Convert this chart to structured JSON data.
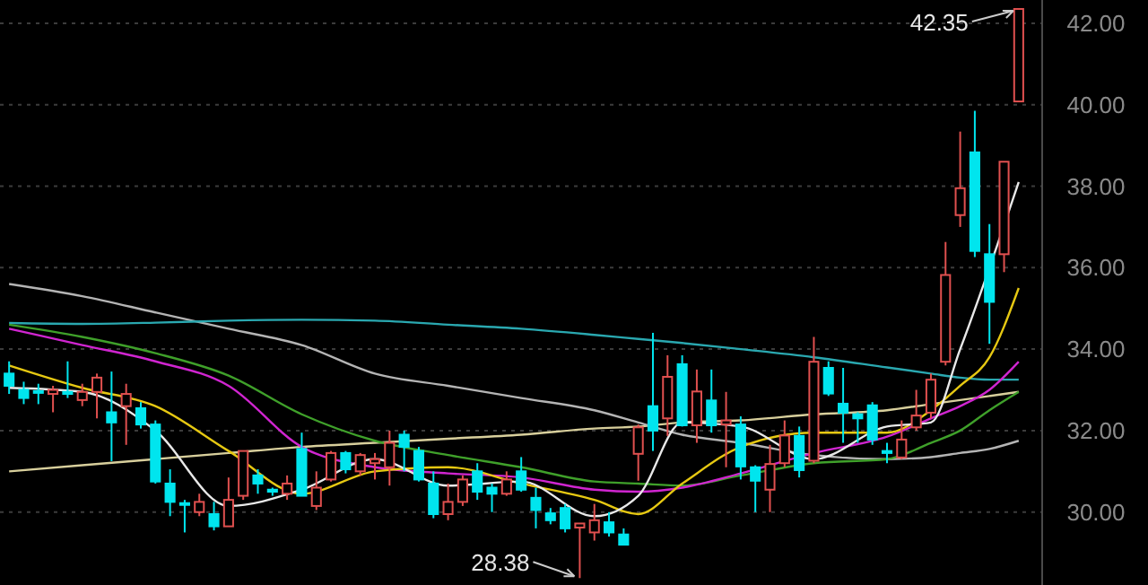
{
  "chart_data": {
    "type": "candlestick",
    "categories": [
      null,
      null,
      null,
      null,
      null,
      null,
      null,
      null,
      null,
      null,
      null,
      null,
      null,
      null,
      null,
      null,
      null,
      null,
      null,
      null,
      null,
      null,
      null,
      null,
      null,
      null,
      null,
      null,
      null,
      null,
      null,
      null,
      null,
      null,
      null,
      null,
      null,
      null,
      null,
      null,
      null,
      null,
      null,
      null,
      null,
      null,
      null,
      null,
      null,
      null,
      null,
      null,
      null,
      null,
      null,
      null,
      null,
      null,
      null,
      null,
      null,
      null,
      null,
      null,
      null,
      null,
      null,
      null,
      null,
      null
    ],
    "ohlc": [
      [
        33.4,
        33.7,
        32.9,
        33.1
      ],
      [
        33.0,
        33.2,
        32.65,
        32.8
      ],
      [
        32.97,
        33.15,
        32.65,
        32.93
      ],
      [
        32.9,
        33.1,
        32.45,
        33.0
      ],
      [
        32.95,
        33.7,
        32.8,
        32.9
      ],
      [
        32.75,
        33.15,
        32.6,
        32.95
      ],
      [
        32.95,
        33.4,
        32.3,
        33.3
      ],
      [
        32.45,
        33.45,
        31.25,
        32.2
      ],
      [
        32.6,
        33.15,
        31.65,
        32.9
      ],
      [
        32.55,
        32.7,
        32.05,
        32.15
      ],
      [
        32.15,
        32.25,
        30.7,
        30.75
      ],
      [
        30.7,
        31.05,
        29.9,
        30.25
      ],
      [
        30.22,
        30.3,
        29.5,
        30.18
      ],
      [
        30.0,
        30.45,
        29.9,
        30.25
      ],
      [
        29.95,
        30.25,
        29.55,
        29.65
      ],
      [
        29.65,
        30.85,
        29.65,
        30.3
      ],
      [
        30.4,
        31.5,
        30.3,
        31.5
      ],
      [
        30.9,
        31.05,
        30.45,
        30.7
      ],
      [
        30.55,
        30.6,
        30.4,
        30.5
      ],
      [
        30.45,
        30.9,
        30.3,
        30.7
      ],
      [
        31.55,
        31.95,
        30.4,
        30.4
      ],
      [
        30.15,
        31.0,
        30.05,
        30.6
      ],
      [
        30.8,
        31.5,
        30.75,
        31.45
      ],
      [
        31.45,
        31.5,
        30.95,
        31.05
      ],
      [
        31.0,
        31.45,
        30.9,
        31.4
      ],
      [
        31.2,
        31.45,
        30.8,
        31.3
      ],
      [
        31.1,
        32.0,
        30.65,
        31.7
      ],
      [
        31.9,
        32.0,
        31.0,
        31.6
      ],
      [
        31.5,
        31.6,
        30.75,
        30.8
      ],
      [
        30.7,
        31.0,
        29.85,
        29.95
      ],
      [
        29.95,
        30.7,
        29.8,
        30.25
      ],
      [
        30.25,
        30.9,
        30.15,
        30.8
      ],
      [
        31.0,
        31.2,
        30.3,
        30.5
      ],
      [
        30.6,
        30.7,
        30.0,
        30.45
      ],
      [
        30.45,
        31.0,
        30.4,
        30.8
      ],
      [
        31.0,
        31.35,
        30.5,
        30.55
      ],
      [
        30.35,
        30.6,
        29.6,
        30.05
      ],
      [
        29.97,
        30.1,
        29.7,
        29.8
      ],
      [
        30.1,
        30.2,
        29.5,
        29.6
      ],
      [
        29.62,
        29.72,
        28.38,
        29.72
      ],
      [
        29.5,
        30.2,
        29.3,
        29.8
      ],
      [
        29.75,
        30.0,
        29.4,
        29.5
      ],
      [
        29.45,
        29.6,
        29.2,
        29.2
      ],
      [
        31.43,
        32.15,
        30.77,
        32.08
      ],
      [
        32.6,
        34.4,
        31.5,
        32.0
      ],
      [
        32.3,
        33.85,
        31.87,
        33.32
      ],
      [
        33.63,
        33.85,
        32.1,
        32.13
      ],
      [
        32.13,
        33.5,
        31.7,
        32.96
      ],
      [
        32.74,
        33.5,
        31.95,
        32.13
      ],
      [
        32.15,
        32.95,
        31.1,
        32.25
      ],
      [
        32.15,
        32.35,
        30.8,
        31.12
      ],
      [
        31.1,
        31.15,
        30.0,
        30.77
      ],
      [
        30.55,
        31.65,
        30.0,
        31.18
      ],
      [
        31.2,
        32.25,
        31.1,
        31.88
      ],
      [
        31.87,
        32.1,
        30.85,
        31.03
      ],
      [
        31.26,
        34.3,
        31.2,
        33.69
      ],
      [
        33.54,
        33.7,
        32.85,
        32.91
      ],
      [
        32.66,
        33.54,
        31.7,
        32.44
      ],
      [
        32.4,
        32.45,
        31.7,
        32.3
      ],
      [
        32.62,
        32.7,
        31.65,
        31.78
      ],
      [
        31.5,
        31.7,
        31.2,
        31.45
      ],
      [
        31.34,
        32.25,
        31.3,
        31.78
      ],
      [
        32.08,
        33.0,
        32.0,
        32.37
      ],
      [
        32.44,
        33.4,
        32.3,
        33.25
      ],
      [
        33.69,
        36.63,
        33.6,
        35.82
      ],
      [
        37.29,
        39.34,
        37.0,
        37.95
      ],
      [
        38.83,
        39.85,
        36.26,
        36.41
      ],
      [
        36.33,
        37.07,
        34.13,
        35.16
      ],
      [
        36.33,
        38.6,
        35.89,
        38.6
      ],
      [
        40.08,
        42.35,
        40.08,
        42.35
      ]
    ],
    "colors": [
      "#00e5ee",
      "#00e5ee",
      "#00e5ee",
      "#e0504f",
      "#00e5ee",
      "#e0504f",
      "#e0504f",
      "#00e5ee",
      "#e0504f",
      "#00e5ee",
      "#00e5ee",
      "#00e5ee",
      "#00e5ee",
      "#e0504f",
      "#00e5ee",
      "#e0504f",
      "#e0504f",
      "#00e5ee",
      "#00e5ee",
      "#e0504f",
      "#00e5ee",
      "#e0504f",
      "#e0504f",
      "#00e5ee",
      "#e0504f",
      "#e0504f",
      "#e0504f",
      "#00e5ee",
      "#00e5ee",
      "#00e5ee",
      "#e0504f",
      "#e0504f",
      "#00e5ee",
      "#00e5ee",
      "#e0504f",
      "#00e5ee",
      "#00e5ee",
      "#00e5ee",
      "#00e5ee",
      "#e0504f",
      "#e0504f",
      "#00e5ee",
      "#00e5ee",
      "#e0504f",
      "#00e5ee",
      "#e0504f",
      "#00e5ee",
      "#e0504f",
      "#00e5ee",
      "#e0504f",
      "#00e5ee",
      "#00e5ee",
      "#e0504f",
      "#e0504f",
      "#00e5ee",
      "#e0504f",
      "#00e5ee",
      "#00e5ee",
      "#00e5ee",
      "#00e5ee",
      "#00e5ee",
      "#e0504f",
      "#e0504f",
      "#e0504f",
      "#e0504f",
      "#e0504f",
      "#00e5ee",
      "#00e5ee",
      "#e0504f",
      "#e0504f"
    ],
    "series": [
      {
        "type": "line",
        "color": "#d8cf9c",
        "values": [
          31.0,
          null,
          null,
          null,
          null,
          31.15,
          null,
          null,
          null,
          null,
          31.3,
          null,
          null,
          null,
          null,
          31.45,
          null,
          null,
          null,
          null,
          31.6,
          null,
          null,
          null,
          null,
          31.7,
          null,
          null,
          null,
          null,
          31.8,
          null,
          null,
          null,
          null,
          31.9,
          null,
          null,
          null,
          null,
          32.05,
          null,
          null,
          32.1,
          null,
          null,
          32.2,
          null,
          null,
          null,
          32.25,
          null,
          null,
          null,
          null,
          32.4,
          null,
          null,
          null,
          null,
          32.5,
          null,
          null,
          32.65,
          null,
          32.75,
          null,
          32.85,
          null,
          32.95
        ]
      },
      {
        "type": "line",
        "color": "#b4b4b4",
        "values": [
          35.6,
          null,
          null,
          null,
          null,
          35.3,
          null,
          null,
          null,
          null,
          34.9,
          null,
          null,
          null,
          null,
          34.5,
          null,
          null,
          null,
          null,
          34.1,
          null,
          null,
          null,
          null,
          33.4,
          null,
          null,
          null,
          null,
          33.1,
          null,
          null,
          null,
          null,
          32.8,
          null,
          null,
          null,
          null,
          32.5,
          null,
          null,
          32.2,
          null,
          null,
          31.9,
          null,
          null,
          null,
          31.7,
          null,
          null,
          null,
          null,
          31.4,
          null,
          null,
          null,
          null,
          31.3,
          null,
          null,
          31.35,
          null,
          31.45,
          null,
          31.55,
          null,
          31.75
        ]
      },
      {
        "type": "line",
        "color": "#2aa8b0",
        "values": [
          34.64,
          null,
          null,
          null,
          null,
          34.62,
          null,
          null,
          null,
          null,
          34.65,
          null,
          null,
          null,
          null,
          34.7,
          null,
          null,
          null,
          null,
          34.72,
          null,
          null,
          null,
          null,
          34.7,
          null,
          null,
          null,
          null,
          34.6,
          null,
          null,
          null,
          null,
          34.5,
          null,
          null,
          null,
          null,
          34.35,
          null,
          null,
          34.25,
          null,
          null,
          34.15,
          null,
          null,
          null,
          34.0,
          null,
          null,
          null,
          null,
          33.8,
          null,
          null,
          null,
          null,
          33.55,
          null,
          null,
          33.4,
          null,
          33.3,
          null,
          33.25,
          null,
          33.25
        ]
      },
      {
        "type": "line",
        "color": "#3fa02a",
        "values": [
          34.6,
          null,
          null,
          null,
          null,
          34.3,
          null,
          null,
          null,
          null,
          33.9,
          null,
          null,
          null,
          null,
          33.35,
          null,
          null,
          null,
          null,
          32.4,
          null,
          null,
          null,
          null,
          31.75,
          null,
          null,
          null,
          null,
          31.4,
          null,
          null,
          null,
          null,
          31.1,
          null,
          null,
          null,
          null,
          30.75,
          null,
          null,
          30.7,
          null,
          null,
          30.65,
          null,
          null,
          null,
          30.9,
          null,
          null,
          null,
          null,
          31.2,
          null,
          null,
          null,
          null,
          31.3,
          null,
          null,
          31.7,
          null,
          32.0,
          null,
          32.5,
          null,
          32.95
        ]
      },
      {
        "type": "line",
        "color": "#d025d0",
        "values": [
          34.5,
          null,
          null,
          null,
          null,
          34.1,
          null,
          null,
          null,
          null,
          33.7,
          null,
          null,
          null,
          null,
          33.1,
          null,
          null,
          null,
          null,
          31.6,
          null,
          null,
          null,
          null,
          31.1,
          null,
          null,
          null,
          null,
          30.95,
          null,
          null,
          null,
          null,
          30.85,
          null,
          null,
          null,
          null,
          30.55,
          null,
          null,
          30.5,
          null,
          null,
          30.6,
          null,
          null,
          null,
          30.95,
          null,
          null,
          null,
          null,
          31.45,
          null,
          null,
          null,
          null,
          31.85,
          null,
          null,
          32.3,
          null,
          32.6,
          null,
          33.0,
          null,
          33.69
        ]
      },
      {
        "type": "line",
        "color": "#e6c812",
        "values": [
          33.6,
          null,
          null,
          null,
          null,
          33.05,
          null,
          null,
          null,
          null,
          32.6,
          null,
          null,
          null,
          null,
          31.5,
          null,
          null,
          null,
          null,
          30.45,
          null,
          null,
          null,
          null,
          31.0,
          null,
          null,
          null,
          null,
          31.1,
          null,
          null,
          null,
          null,
          30.7,
          null,
          null,
          null,
          null,
          30.3,
          null,
          null,
          29.95,
          null,
          null,
          30.7,
          null,
          null,
          null,
          31.6,
          null,
          null,
          null,
          null,
          31.95,
          null,
          null,
          null,
          null,
          31.95,
          null,
          null,
          32.5,
          null,
          33.1,
          null,
          33.8,
          null,
          35.5
        ]
      },
      {
        "type": "line",
        "color": "#e8e8e8",
        "values": [
          33.05,
          null,
          null,
          null,
          null,
          32.95,
          null,
          null,
          null,
          null,
          32.0,
          null,
          null,
          null,
          null,
          30.15,
          null,
          null,
          null,
          null,
          30.55,
          null,
          null,
          null,
          null,
          31.3,
          null,
          null,
          null,
          null,
          30.65,
          null,
          null,
          null,
          null,
          30.75,
          null,
          null,
          null,
          null,
          29.9,
          null,
          null,
          30.4,
          null,
          null,
          32.2,
          null,
          null,
          null,
          32.1,
          null,
          null,
          null,
          null,
          31.3,
          null,
          null,
          null,
          null,
          32.1,
          null,
          null,
          32.2,
          null,
          34.0,
          null,
          null,
          null,
          38.1
        ]
      }
    ],
    "ylim": [
      28.21,
      42.57
    ],
    "yticks": [
      {
        "value": 30,
        "label": "30.00"
      },
      {
        "value": 32,
        "label": "32.00"
      },
      {
        "value": 34,
        "label": "34.00"
      },
      {
        "value": 36,
        "label": "36.00"
      },
      {
        "value": 38,
        "label": "38.00"
      },
      {
        "value": 40,
        "label": "40.00"
      },
      {
        "value": 42,
        "label": "42.00"
      }
    ],
    "grid": "y",
    "annotations": [
      "42.35",
      "28.38"
    ]
  }
}
